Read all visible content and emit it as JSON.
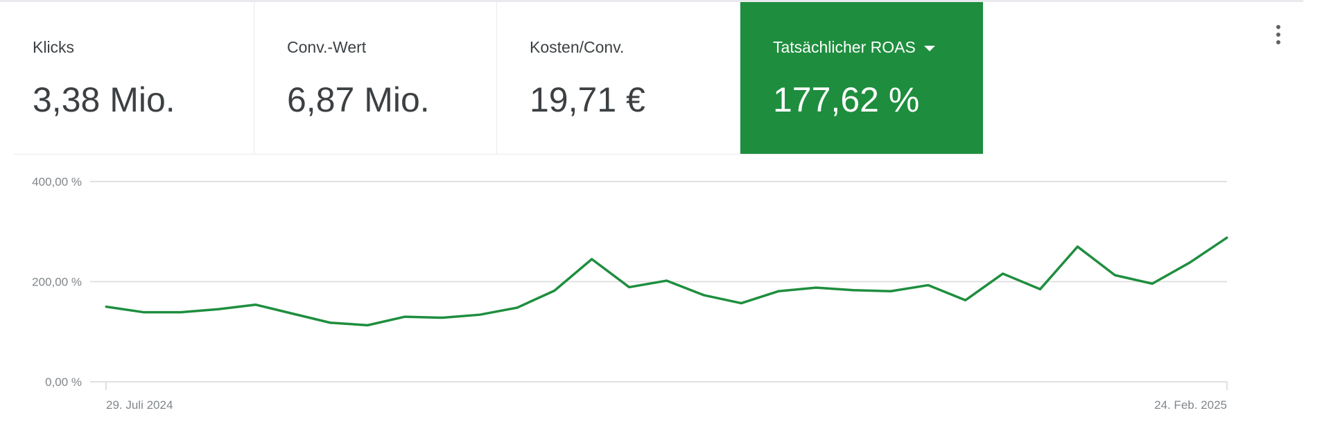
{
  "scorecards": [
    {
      "label": "Klicks",
      "value": "3,38 Mio."
    },
    {
      "label": "Conv.-Wert",
      "value": "6,87 Mio."
    },
    {
      "label": "Kosten/Conv.",
      "value": "19,71 €"
    },
    {
      "label": "Tatsächlicher ROAS",
      "value": "177,62 %",
      "selected": true
    }
  ],
  "menu_icon": "more-vert-icon",
  "colors": {
    "accent": "#1e8e3e",
    "grid": "#e0e0e0"
  },
  "chart_data": {
    "type": "line",
    "ylim": [
      0,
      400
    ],
    "y_ticks": [
      "0,00 %",
      "200,00 %",
      "400,00 %"
    ],
    "y_tick_values": [
      0,
      200,
      400
    ],
    "x_tick_labels": [
      "29. Juli 2024",
      "24. Feb. 2025"
    ],
    "grid": true,
    "series": [
      {
        "values": [
          150,
          139,
          139,
          145,
          154,
          136,
          118,
          113,
          130,
          128,
          134,
          148,
          182,
          245,
          189,
          202,
          173,
          157,
          181,
          188,
          183,
          181,
          193,
          163,
          216,
          185,
          270,
          213,
          196,
          238,
          288
        ]
      }
    ]
  }
}
